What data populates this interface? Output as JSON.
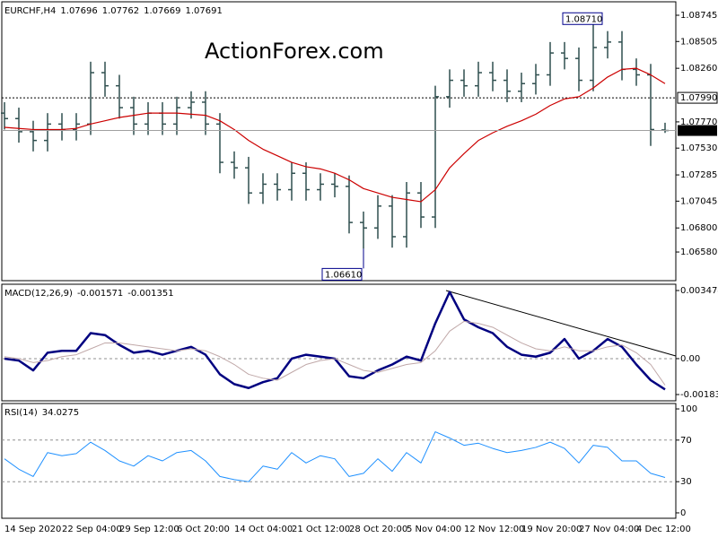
{
  "watermark": "ActionForex.com",
  "chart_data": [
    {
      "type": "ohlc",
      "title": "EURCHF,H4",
      "color": "#2f4f4f",
      "categories": [
        "14 Sep 2020",
        null,
        null,
        null,
        "22 Sep 04:00",
        null,
        null,
        null,
        "29 Sep 12:00",
        null,
        null,
        null,
        "6 Oct 20:00",
        null,
        null,
        null,
        "14 Oct 04:00",
        null,
        null,
        null,
        "21 Oct 12:00",
        null,
        null,
        null,
        "28 Oct 20:00",
        null,
        null,
        null,
        "5 Nov 04:00",
        null,
        null,
        null,
        "12 Nov 12:00",
        null,
        null,
        null,
        "19 Nov 20:00",
        null,
        null,
        null,
        "27 Nov 04:00",
        null,
        null,
        null,
        "4 Dec 12:00",
        null,
        null
      ],
      "open": [
        1.0785,
        1.078,
        1.0768,
        1.076,
        1.0775,
        1.077,
        1.0775,
        1.0822,
        1.081,
        1.079,
        1.0775,
        1.0785,
        1.0775,
        1.079,
        1.0795,
        1.0775,
        1.074,
        1.0735,
        1.0712,
        1.072,
        1.0715,
        1.073,
        1.0715,
        1.072,
        1.0718,
        1.0685,
        1.068,
        1.07,
        1.0672,
        1.0712,
        1.069,
        1.08,
        1.0815,
        1.081,
        1.0822,
        1.0815,
        1.0805,
        1.0812,
        1.082,
        1.084,
        1.0835,
        1.0815,
        1.0845,
        1.085,
        1.0825,
        1.082,
        1.07696
      ],
      "high": [
        1.0795,
        1.079,
        1.0778,
        1.0785,
        1.0785,
        1.0785,
        1.0832,
        1.0832,
        1.082,
        1.08,
        1.0795,
        1.0795,
        1.08,
        1.0805,
        1.0805,
        1.0785,
        1.075,
        1.0745,
        1.073,
        1.073,
        1.074,
        1.074,
        1.073,
        1.073,
        1.0728,
        1.0695,
        1.071,
        1.071,
        1.0722,
        1.0722,
        1.081,
        1.0825,
        1.0825,
        1.0832,
        1.0832,
        1.0825,
        1.0822,
        1.083,
        1.085,
        1.085,
        1.0845,
        1.0871,
        1.086,
        1.086,
        1.0835,
        1.083,
        1.07762
      ],
      "low": [
        1.077,
        1.0758,
        1.075,
        1.075,
        1.076,
        1.076,
        1.0765,
        1.08,
        1.078,
        1.0765,
        1.0765,
        1.0765,
        1.0765,
        1.078,
        1.0765,
        1.073,
        1.0725,
        1.0702,
        1.0702,
        1.0705,
        1.0705,
        1.0705,
        1.0705,
        1.0708,
        1.0675,
        1.0661,
        1.067,
        1.0662,
        1.0662,
        1.068,
        1.068,
        1.079,
        1.08,
        1.08,
        1.0805,
        1.0795,
        1.0795,
        1.0802,
        1.081,
        1.0825,
        1.0805,
        1.0805,
        1.0835,
        1.0815,
        1.081,
        1.0755,
        1.07669
      ],
      "close": [
        1.078,
        1.0768,
        1.076,
        1.0775,
        1.077,
        1.0775,
        1.0822,
        1.081,
        1.079,
        1.0775,
        1.0785,
        1.0775,
        1.079,
        1.0795,
        1.0775,
        1.074,
        1.0735,
        1.0712,
        1.072,
        1.0715,
        1.073,
        1.0715,
        1.072,
        1.0718,
        1.0685,
        1.068,
        1.07,
        1.0672,
        1.0712,
        1.069,
        1.08,
        1.0815,
        1.081,
        1.0822,
        1.0815,
        1.0805,
        1.0812,
        1.082,
        1.084,
        1.0835,
        1.0815,
        1.0845,
        1.085,
        1.0825,
        1.082,
        1.077,
        1.07691
      ],
      "series": [
        {
          "color": "#cc0000",
          "values": [
            1.0772,
            1.0771,
            1.077,
            1.077,
            1.077,
            1.0771,
            1.0775,
            1.0778,
            1.0781,
            1.0783,
            1.0785,
            1.0785,
            1.0785,
            1.0784,
            1.0783,
            1.0778,
            1.077,
            1.076,
            1.0752,
            1.0746,
            1.074,
            1.0736,
            1.0734,
            1.073,
            1.0724,
            1.0716,
            1.0712,
            1.0708,
            1.0706,
            1.0704,
            1.0715,
            1.0735,
            1.0748,
            1.076,
            1.0767,
            1.0773,
            1.0778,
            1.0784,
            1.0792,
            1.0798,
            1.08,
            1.0808,
            1.0818,
            1.0825,
            1.0826,
            1.082,
            1.0812
          ]
        }
      ],
      "ylim": [
        1.06318,
        1.08868
      ],
      "yticks": [
        1.08745,
        1.08505,
        {
          "value": 1.0826,
          "label": "1.08260"
        },
        {
          "value": 1.0777,
          "label": "1.07770"
        },
        {
          "value": 1.0753,
          "label": "1.07530"
        },
        1.07285,
        1.07045,
        {
          "value": 1.068,
          "label": "1.06800"
        },
        {
          "value": 1.0658,
          "label": "1.06580"
        }
      ],
      "hline": {
        "value": 1.0799,
        "label": "1.07990"
      },
      "annotations": [
        "1.08710",
        "1.06610"
      ]
    },
    {
      "type": "line",
      "title": "MACD(12,26,9)",
      "series": [
        {
          "color": "#000080",
          "width": 2.5,
          "values": [
            0.0,
            -0.0001,
            -0.0006,
            0.0003,
            0.0004,
            0.0004,
            0.0013,
            0.0012,
            0.0007,
            0.0003,
            0.0004,
            0.0002,
            0.0004,
            0.0006,
            0.0002,
            -0.0008,
            -0.0013,
            -0.0015,
            -0.0012,
            -0.001,
            0.0,
            0.0002,
            0.0001,
            0.0,
            -0.0009,
            -0.001,
            -0.0006,
            -0.0003,
            0.0001,
            -0.0001,
            0.0018,
            0.0034,
            0.002,
            0.0016,
            0.0013,
            0.0006,
            0.0002,
            0.0001,
            0.0003,
            0.001,
            0.0,
            0.0004,
            0.001,
            0.0006,
            -0.0003,
            -0.0011,
            -0.001571
          ]
        },
        {
          "color": "#c0a8a8",
          "width": 1,
          "values": [
            0.0001,
            0.0,
            -0.0002,
            -0.0001,
            0.0001,
            0.0002,
            0.0005,
            0.0008,
            0.0008,
            0.0007,
            0.0006,
            0.0005,
            0.0004,
            0.0005,
            0.0004,
            0.0001,
            -0.0003,
            -0.0008,
            -0.001,
            -0.0011,
            -0.0007,
            -0.0003,
            -0.0001,
            0.0,
            -0.0003,
            -0.0006,
            -0.0007,
            -0.0005,
            -0.0003,
            -0.0002,
            0.0004,
            0.0014,
            0.0019,
            0.0018,
            0.0016,
            0.0012,
            0.0008,
            0.0005,
            0.0004,
            0.0006,
            0.0004,
            0.0004,
            0.0006,
            0.0007,
            0.0003,
            -0.0003,
            -0.001351
          ]
        }
      ],
      "ylim": [
        -0.002152,
        0.003794
      ],
      "yticks": [
        0.003474,
        {
          "value": 0,
          "label": "0.00"
        },
        -0.001832
      ],
      "levels": [
        0
      ]
    },
    {
      "type": "line",
      "title": "RSI(14)",
      "series": [
        {
          "color": "#1e90ff",
          "width": 1,
          "values": [
            52,
            42,
            35,
            58,
            55,
            57,
            68,
            60,
            50,
            45,
            55,
            50,
            58,
            60,
            50,
            35,
            32,
            30,
            45,
            42,
            58,
            48,
            55,
            52,
            35,
            38,
            52,
            40,
            58,
            48,
            78,
            72,
            65,
            67,
            62,
            58,
            60,
            63,
            68,
            62,
            48,
            65,
            63,
            50,
            50,
            38,
            34.0275
          ]
        }
      ],
      "ylim": [
        -5.2,
        105.2
      ],
      "yticks": [
        100,
        70,
        30,
        0
      ],
      "levels": [
        70,
        30
      ]
    }
  ]
}
